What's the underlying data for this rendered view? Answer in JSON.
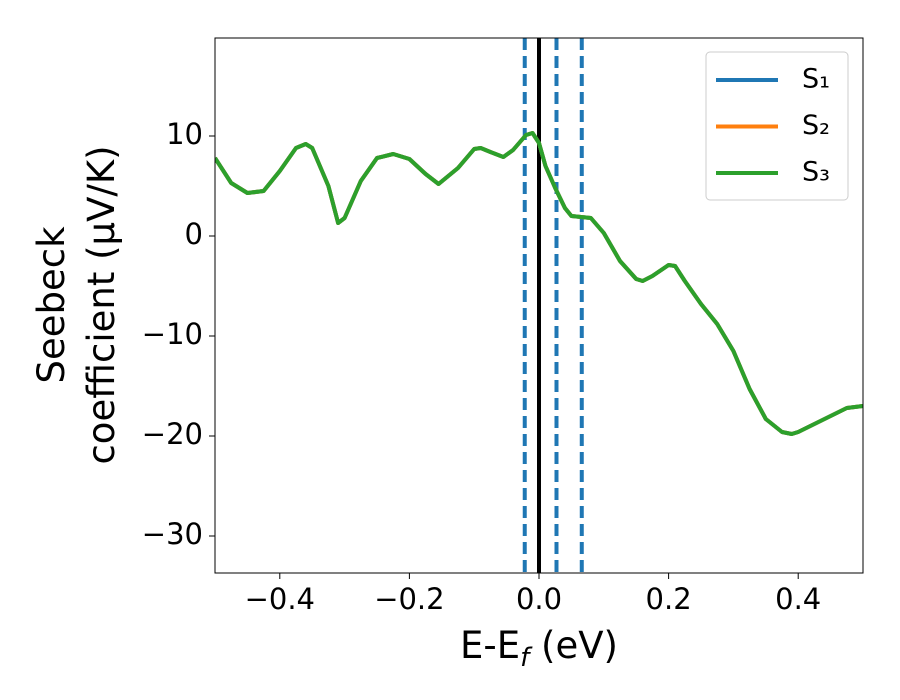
{
  "chart_data": {
    "type": "line",
    "xlabel": [
      "E-E",
      "f",
      " (eV)"
    ],
    "ylabel": [
      "Seebeck",
      "coefficient  (μV/K)"
    ],
    "xlim": [
      -0.5,
      0.5
    ],
    "ylim": [
      -33.7,
      19.8
    ],
    "xticks": [
      {
        "value": -0.4,
        "label": "−0.4"
      },
      {
        "value": -0.2,
        "label": "−0.2"
      },
      {
        "value": 0,
        "label": "0.0"
      },
      0.2,
      0.4
    ],
    "yticks": [
      {
        "value": -30,
        "label": "−30"
      },
      {
        "value": -20,
        "label": "−20"
      },
      {
        "value": -10,
        "label": "−10"
      },
      0,
      10
    ],
    "legend": "upper right",
    "x": [
      -0.5,
      -0.475,
      -0.45,
      -0.425,
      -0.4,
      -0.375,
      -0.36,
      -0.35,
      -0.325,
      -0.31,
      -0.3,
      -0.275,
      -0.25,
      -0.225,
      -0.2,
      -0.175,
      -0.155,
      -0.125,
      -0.1,
      -0.09,
      -0.075,
      -0.055,
      -0.04,
      -0.02,
      -0.01,
      0,
      0.01,
      0.025,
      0.04,
      0.05,
      0.065,
      0.08,
      0.1,
      0.125,
      0.15,
      0.16,
      0.175,
      0.2,
      0.21,
      0.225,
      0.25,
      0.275,
      0.3,
      0.325,
      0.35,
      0.375,
      0.39,
      0.4,
      0.425,
      0.45,
      0.475,
      0.5
    ],
    "series": [
      {
        "name": "S₁",
        "color": "#1f77b4",
        "values": [
          7.8,
          5.3,
          4.3,
          4.5,
          6.5,
          8.8,
          9.2,
          8.8,
          5.0,
          1.3,
          1.8,
          5.5,
          7.8,
          8.2,
          7.7,
          6.2,
          5.2,
          6.8,
          8.7,
          8.8,
          8.4,
          7.9,
          8.6,
          10.1,
          10.3,
          9.3,
          7.0,
          4.8,
          2.8,
          2.0,
          1.9,
          1.8,
          0.3,
          -2.5,
          -4.3,
          -4.5,
          -4.0,
          -2.9,
          -3.0,
          -4.5,
          -6.8,
          -8.8,
          -11.5,
          -15.3,
          -18.3,
          -19.6,
          -19.8,
          -19.6,
          -18.8,
          -18.0,
          -17.2,
          -17.0
        ]
      },
      {
        "name": "S₂",
        "color": "#ff7f0e",
        "values": [
          7.8,
          5.3,
          4.3,
          4.5,
          6.5,
          8.8,
          9.2,
          8.8,
          5.0,
          1.3,
          1.8,
          5.5,
          7.8,
          8.2,
          7.7,
          6.2,
          5.2,
          6.8,
          8.7,
          8.8,
          8.4,
          7.9,
          8.6,
          10.1,
          10.3,
          9.3,
          7.0,
          4.8,
          2.8,
          2.0,
          1.9,
          1.8,
          0.3,
          -2.5,
          -4.3,
          -4.5,
          -4.0,
          -2.9,
          -3.0,
          -4.5,
          -6.8,
          -8.8,
          -11.5,
          -15.3,
          -18.3,
          -19.6,
          -19.8,
          -19.6,
          -18.8,
          -18.0,
          -17.2,
          -17.0
        ]
      },
      {
        "name": "S₃",
        "color": "#2ca02c",
        "values": [
          7.8,
          5.3,
          4.3,
          4.5,
          6.5,
          8.8,
          9.2,
          8.8,
          5.0,
          1.3,
          1.8,
          5.5,
          7.8,
          8.2,
          7.7,
          6.2,
          5.2,
          6.8,
          8.7,
          8.8,
          8.4,
          7.9,
          8.6,
          10.1,
          10.3,
          9.3,
          7.0,
          4.8,
          2.8,
          2.0,
          1.9,
          1.8,
          0.3,
          -2.5,
          -4.3,
          -4.5,
          -4.0,
          -2.9,
          -3.0,
          -4.5,
          -6.8,
          -8.8,
          -11.5,
          -15.3,
          -18.3,
          -19.6,
          -19.8,
          -19.6,
          -18.8,
          -18.0,
          -17.2,
          -17.0
        ]
      }
    ],
    "vlines": [
      {
        "x": -0.022,
        "color": "#1f77b4",
        "style": "dashed"
      },
      {
        "x": 0,
        "color": "#000000",
        "style": "solid"
      },
      {
        "x": 0.027,
        "color": "#1f77b4",
        "style": "dashed"
      },
      {
        "x": 0.066,
        "color": "#1f77b4",
        "style": "dashed"
      }
    ]
  }
}
